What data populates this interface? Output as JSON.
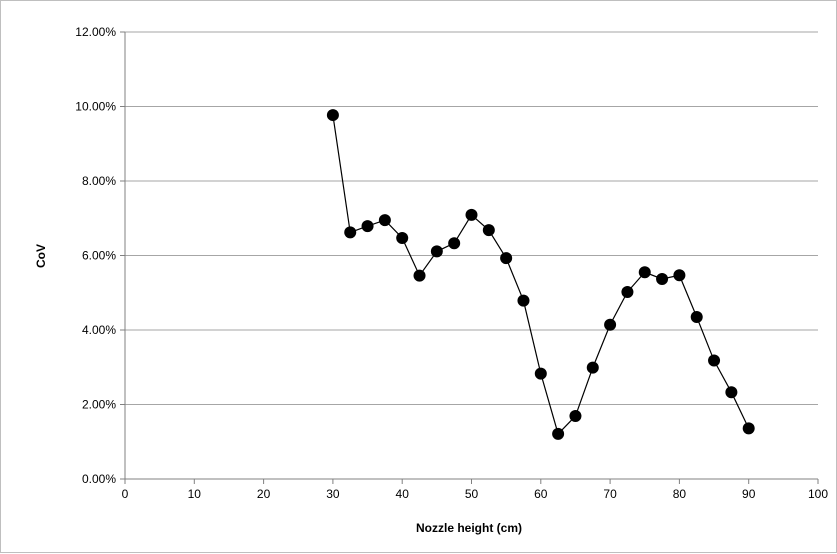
{
  "chart_data": {
    "type": "line",
    "title": "",
    "xlabel": "Nozzle height (cm)",
    "ylabel": "CoV",
    "xlim": [
      0,
      100
    ],
    "ylim": [
      0,
      0.12
    ],
    "x_ticks": [
      0,
      10,
      20,
      30,
      40,
      50,
      60,
      70,
      80,
      90,
      100
    ],
    "y_ticks": [
      0,
      0.02,
      0.04,
      0.06,
      0.08,
      0.1,
      0.12
    ],
    "x_tick_labels": [
      "0",
      "10",
      "20",
      "30",
      "40",
      "50",
      "60",
      "70",
      "80",
      "90",
      "100"
    ],
    "y_tick_labels": [
      "0.00%",
      "2.00%",
      "4.00%",
      "6.00%",
      "8.00%",
      "10.00%",
      "12.00%"
    ],
    "grid": "horizontal major gridlines",
    "legend": "none",
    "marker": "filled circle",
    "series": [
      {
        "x": [
          30,
          32.5,
          35,
          37.5,
          40,
          42.5,
          45,
          47.5,
          50,
          52.5,
          55,
          57.5,
          60,
          62.5,
          65,
          67.5,
          70,
          72.5,
          75,
          77.5,
          80,
          82.5,
          85,
          87.5,
          90
        ],
        "y": [
          0.0977,
          0.0662,
          0.0679,
          0.0695,
          0.0647,
          0.0546,
          0.0611,
          0.0633,
          0.0709,
          0.0668,
          0.0593,
          0.0479,
          0.0283,
          0.0121,
          0.0169,
          0.0299,
          0.0414,
          0.0502,
          0.0555,
          0.0537,
          0.0547,
          0.0435,
          0.0318,
          0.0233,
          0.0136
        ]
      }
    ],
    "colors": {
      "series": "#000000",
      "grid": "#a6a6a6",
      "axis": "#808080",
      "frame": "#bfbfbf"
    }
  }
}
